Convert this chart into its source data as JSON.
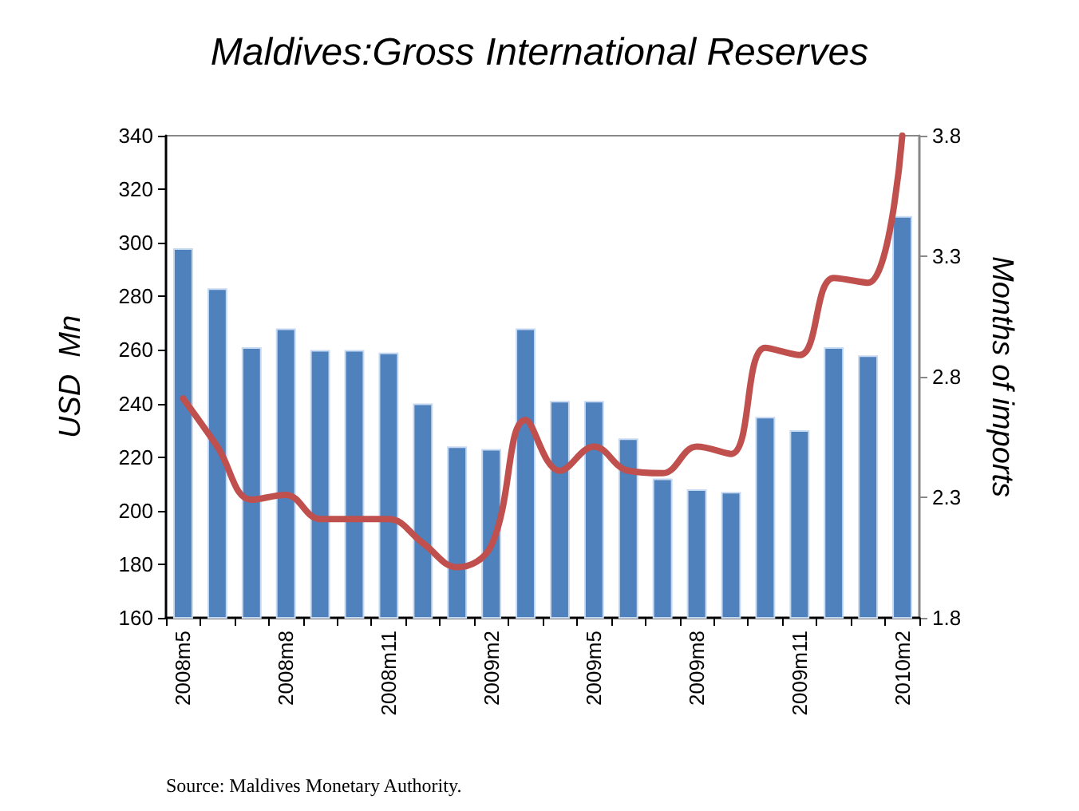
{
  "chart_data": {
    "type": "bar",
    "title": "Maldives:Gross International Reserves",
    "ylabel": "USD  Mn",
    "y2label": "Months of imports",
    "categories": [
      "2008m5",
      null,
      null,
      "2008m8",
      null,
      null,
      "2008m11",
      null,
      null,
      "2009m2",
      null,
      null,
      "2009m5",
      null,
      null,
      "2009m8",
      null,
      null,
      "2009m11",
      null,
      null,
      "2010m2"
    ],
    "series": [
      {
        "color": "#4f81bd",
        "values": [
          298,
          283,
          261,
          268,
          260,
          260,
          259,
          240,
          224,
          223,
          268,
          241,
          241,
          227,
          212,
          208,
          207,
          235,
          230,
          261,
          258,
          310
        ]
      },
      {
        "type": "line",
        "axis": "y2",
        "color": "#c0504d",
        "marker": "none",
        "line_style": "solid",
        "values": [
          2.71,
          2.51,
          2.29,
          2.31,
          2.21,
          2.21,
          2.21,
          2.11,
          2.01,
          2.1,
          2.62,
          2.41,
          2.51,
          2.41,
          2.4,
          2.51,
          2.48,
          2.92,
          2.89,
          3.21,
          3.19,
          3.8
        ]
      }
    ],
    "ylim": [
      160,
      340
    ],
    "yticks": [
      160,
      180,
      200,
      220,
      240,
      260,
      280,
      300,
      320,
      340
    ],
    "y2lim": [
      1.8,
      3.8
    ],
    "y2ticks": [
      1.8,
      2.3,
      2.8,
      3.3,
      3.8
    ],
    "grid": false,
    "annotations": [
      "Source: Maldives Monetary Authority."
    ]
  }
}
